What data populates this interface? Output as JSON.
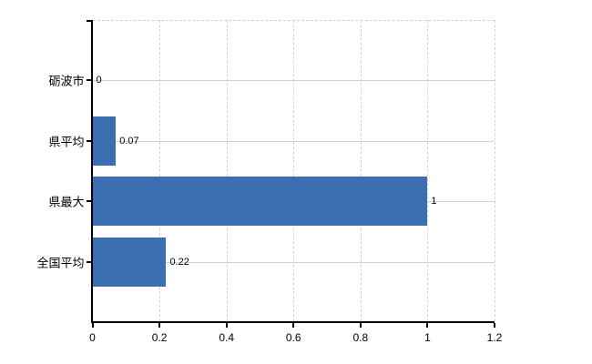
{
  "chart_data": {
    "type": "bar",
    "orientation": "horizontal",
    "title": "",
    "categories": [
      "砺波市",
      "県平均",
      "県最大",
      "全国平均"
    ],
    "values": [
      0,
      0.07,
      1,
      0.22
    ],
    "value_labels": [
      "0",
      "0.07",
      "1",
      "0.22"
    ],
    "xlim": [
      0,
      1.2
    ],
    "x_ticks": [
      0,
      0.2,
      0.4,
      0.6,
      0.8,
      1,
      1.2
    ],
    "x_tick_labels": [
      "0",
      "0.2",
      "0.4",
      "0.6",
      "0.8",
      "1",
      "1.2"
    ],
    "xlabel": "",
    "ylabel": "",
    "grid": true,
    "legend": false
  },
  "colors": {
    "bar": "#3c6eb2",
    "grid": "#ccd6cc",
    "plot_top_border": "#d3ced3",
    "axis": "#000000",
    "text": "#000000",
    "background": "#ffffff"
  }
}
